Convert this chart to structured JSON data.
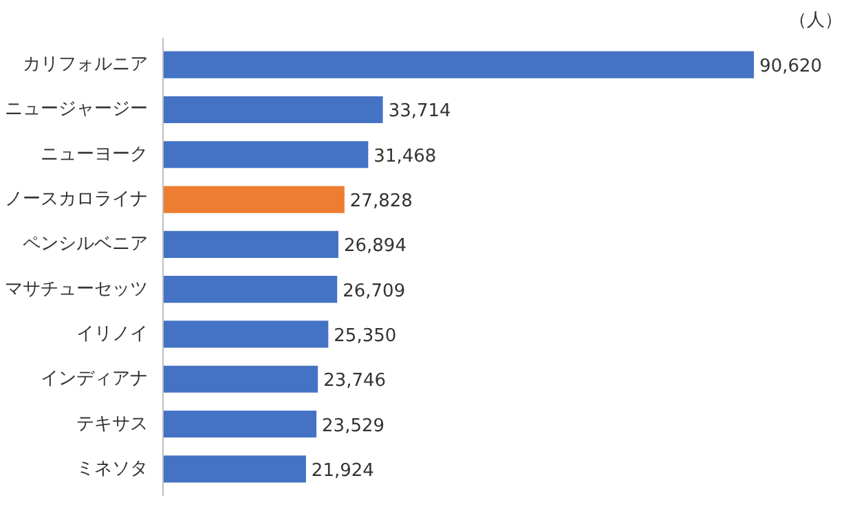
{
  "chart_data": {
    "type": "bar",
    "orientation": "horizontal",
    "categories": [
      "カリフォルニア",
      "ニュージャージー",
      "ニューヨーク",
      "ノースカロライナ",
      "ペンシルベニア",
      "マサチューセッツ",
      "イリノイ",
      "インディアナ",
      "テキサス",
      "ミネソタ"
    ],
    "values": [
      90620,
      33714,
      31468,
      27828,
      26894,
      26709,
      25350,
      23746,
      23529,
      21924
    ],
    "colors": [
      "#4472c4",
      "#4472c4",
      "#4472c4",
      "#ed7d31",
      "#4472c4",
      "#4472c4",
      "#4472c4",
      "#4472c4",
      "#4472c4",
      "#4472c4"
    ],
    "value_labels": [
      "90,620",
      "33,714",
      "31,468",
      "27,828",
      "26,894",
      "26,709",
      "25,350",
      "23,746",
      "23,529",
      "21,924"
    ],
    "grid": false,
    "annotations": [
      "（人）"
    ]
  }
}
